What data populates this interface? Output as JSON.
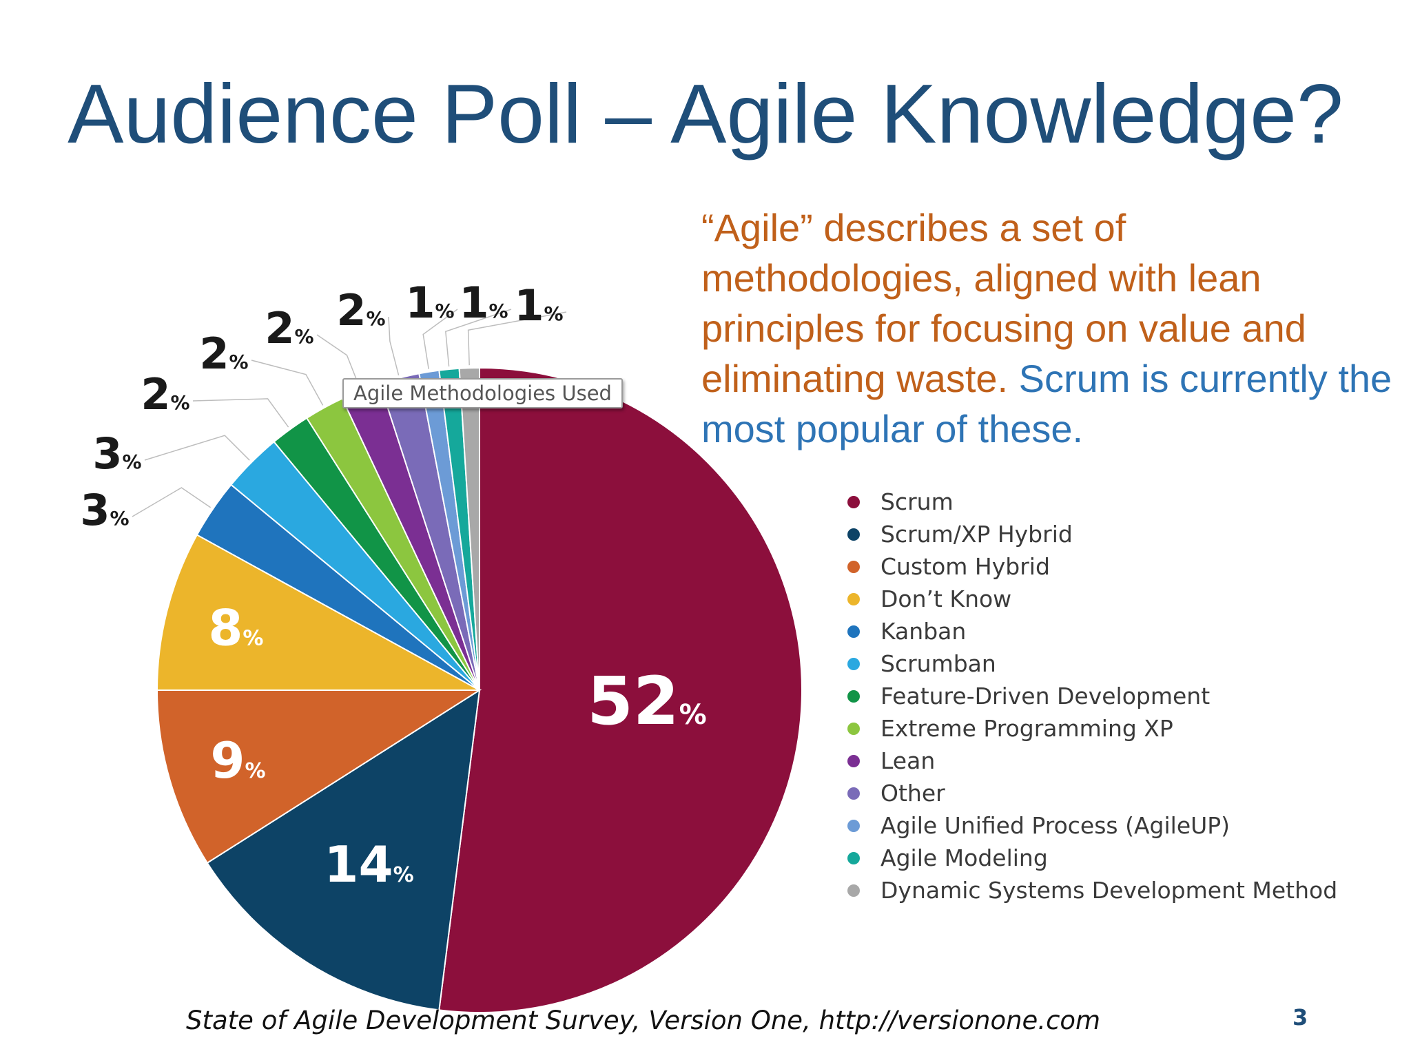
{
  "slide": {
    "title": "Audience Poll – Agile Knowledge?",
    "description_part1": "“Agile” describes a set of methodologies, aligned with lean principles for focusing on value and eliminating waste.  ",
    "description_part2": "Scrum is currently the most popular of these.",
    "footer": "State of Agile Development Survey, Version One, http://versionone.com",
    "page_number": "3"
  },
  "colors": {
    "title": "#1f4e79",
    "description_orange": "#c0601a",
    "description_blue": "#2e74b5"
  },
  "chart_data": {
    "type": "pie",
    "title": "Agile Methodologies Used",
    "legend_position": "right",
    "unit": "%",
    "slices": [
      {
        "name": "Scrum",
        "value": 52,
        "color": "#8c0f3c"
      },
      {
        "name": "Scrum/XP Hybrid",
        "value": 14,
        "color": "#0d4366"
      },
      {
        "name": "Custom Hybrid",
        "value": 9,
        "color": "#d1632a"
      },
      {
        "name": "Don’t Know",
        "value": 8,
        "color": "#ecb52b"
      },
      {
        "name": "Kanban",
        "value": 3,
        "color": "#1f74bd"
      },
      {
        "name": "Scrumban",
        "value": 3,
        "color": "#2aa8e0"
      },
      {
        "name": "Feature-Driven Development",
        "value": 2,
        "color": "#119447"
      },
      {
        "name": "Extreme Programming XP",
        "value": 2,
        "color": "#8cc63f"
      },
      {
        "name": "Lean",
        "value": 2,
        "color": "#7b2f93"
      },
      {
        "name": "Other",
        "value": 2,
        "color": "#7a6bb8"
      },
      {
        "name": "Agile Unified Process (AgileUP)",
        "value": 1,
        "color": "#6c9bd6"
      },
      {
        "name": "Agile Modeling",
        "value": 1,
        "color": "#15a89b"
      },
      {
        "name": "Dynamic Systems Development Method",
        "value": 1,
        "color": "#a8a8a8"
      }
    ]
  }
}
